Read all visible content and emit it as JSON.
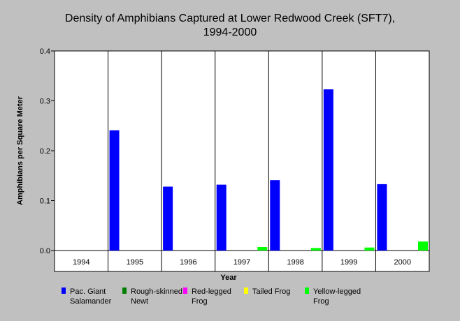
{
  "chart_data": {
    "type": "bar",
    "title_lines": [
      "Density of Amphibians Captured at Lower Redwood Creek (SFT7),",
      "1994-2000"
    ],
    "xlabel": "Year",
    "ylabel": "Amphibians per Square Meter",
    "categories": [
      "1994",
      "1995",
      "1996",
      "1997",
      "1998",
      "1999",
      "2000"
    ],
    "ylim": [
      0,
      0.4
    ],
    "yticks": [
      "0.0",
      "0.1",
      "0.2",
      "0.3",
      "0.4"
    ],
    "grid": "vertical category separators",
    "legend_position": "bottom",
    "series": [
      {
        "name_lines": [
          "Pac. Giant",
          "Salamander"
        ],
        "color": "#0000ff",
        "values": [
          0,
          0.241,
          0.128,
          0.132,
          0.141,
          0.323,
          0.133
        ]
      },
      {
        "name_lines": [
          "Rough-skinned",
          "Newt"
        ],
        "color": "#008000",
        "values": [
          0,
          0,
          0,
          0,
          0,
          0,
          0
        ]
      },
      {
        "name_lines": [
          "Red-legged",
          "Frog"
        ],
        "color": "#ff00ff",
        "values": [
          0,
          0,
          0,
          0,
          0,
          0,
          0
        ]
      },
      {
        "name_lines": [
          "Tailed Frog"
        ],
        "color": "#ffff00",
        "values": [
          0,
          0,
          0,
          0,
          0,
          0,
          0
        ]
      },
      {
        "name_lines": [
          "Yellow-legged",
          "Frog"
        ],
        "color": "#00ff00",
        "values": [
          0,
          0,
          0,
          0.007,
          0.005,
          0.006,
          0.018
        ]
      }
    ]
  }
}
